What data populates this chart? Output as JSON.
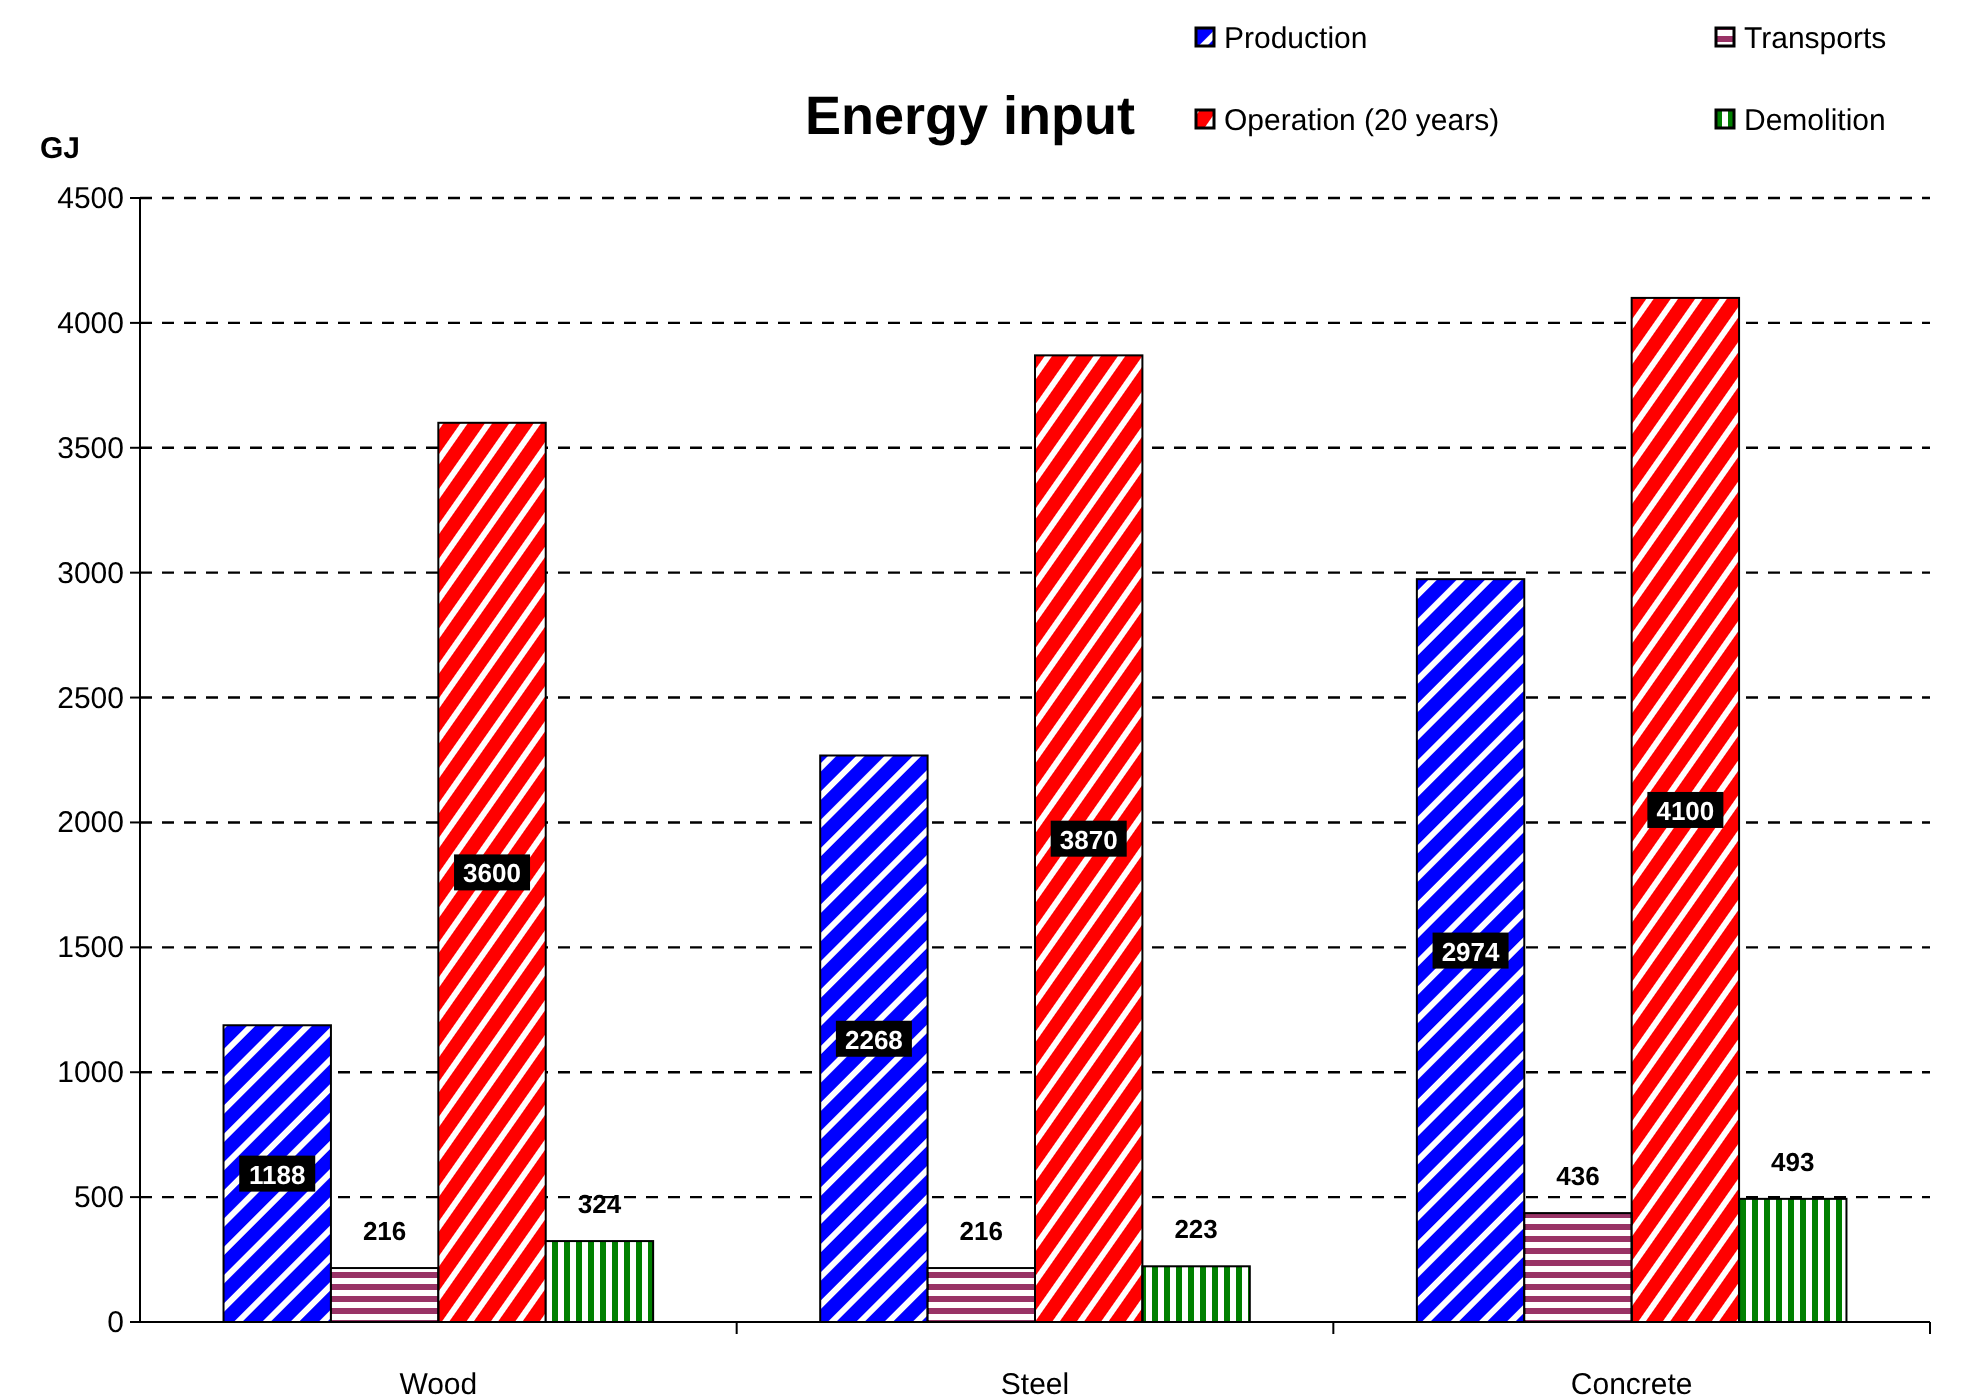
{
  "chart_data": {
    "type": "bar",
    "title": "Energy input",
    "ylabel": "GJ",
    "categories": [
      "Wood",
      "Steel",
      "Concrete"
    ],
    "series": [
      {
        "name": "Production",
        "color": "#0000ff",
        "values": [
          1188,
          2268,
          2974
        ]
      },
      {
        "name": "Transports",
        "color": "#993366",
        "values": [
          216,
          216,
          436
        ]
      },
      {
        "name": "Operation (20 years)",
        "color": "#ff0000",
        "values": [
          3600,
          3870,
          4100
        ]
      },
      {
        "name": "Demolition",
        "color": "#008000",
        "values": [
          324,
          223,
          493
        ]
      }
    ],
    "ylim": [
      0,
      4500
    ],
    "yticks": [
      0,
      500,
      1000,
      1500,
      2000,
      2500,
      3000,
      3500,
      4000,
      4500
    ],
    "grid": "y",
    "legend": "top right",
    "data_labels": true
  }
}
